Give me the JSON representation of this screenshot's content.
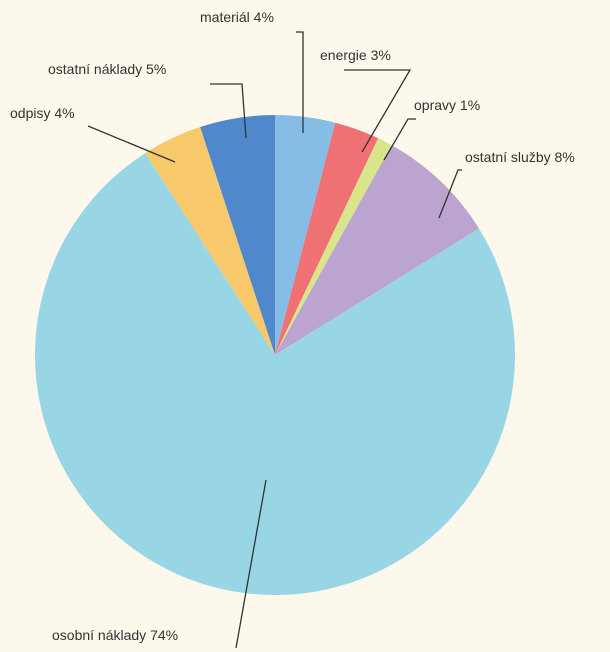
{
  "chart_data": {
    "type": "pie",
    "title": "",
    "slices": [
      {
        "label": "materiál",
        "value": 4,
        "value_label": "4%",
        "color": "#86bde6"
      },
      {
        "label": "energie",
        "value": 3,
        "value_label": "3%",
        "color": "#ef7173"
      },
      {
        "label": "opravy",
        "value": 1,
        "value_label": "1%",
        "color": "#d8e58b"
      },
      {
        "label": "ostatní služby",
        "value": 8,
        "value_label": "8%",
        "color": "#bba4d0"
      },
      {
        "label": "osobní náklady",
        "value": 74,
        "value_label": "74%",
        "color": "#98d6e6"
      },
      {
        "label": "odpisy",
        "value": 4,
        "value_label": "4%",
        "color": "#f8c96b"
      },
      {
        "label": "ostatní náklady",
        "value": 5,
        "value_label": "5%",
        "color": "#4f88cb"
      }
    ],
    "start_angle_deg": 0,
    "direction": "clockwise",
    "legend": "none"
  }
}
